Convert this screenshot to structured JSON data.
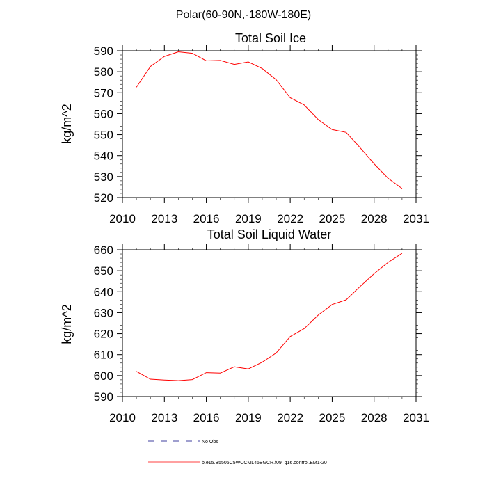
{
  "suptitle": "Polar(60-90N,-180W-180E)",
  "legend": [
    {
      "label": "No Obs",
      "color": "#000080",
      "dashed": true
    },
    {
      "label": "b.e15.B5505C5WCCML45BGCR.f09_g16.control.EM1-20",
      "color": "#ff0000",
      "dashed": false
    }
  ],
  "chart_data": [
    {
      "type": "line",
      "title": "Total Soil Ice",
      "ylabel": "kg/m^2",
      "xlim": [
        2010,
        2031
      ],
      "ylim": [
        520,
        590
      ],
      "xticks": [
        "2010",
        "2013",
        "2016",
        "2019",
        "2022",
        "2025",
        "2028",
        "2031"
      ],
      "yticks": [
        "520",
        "530",
        "540",
        "550",
        "560",
        "570",
        "580",
        "590"
      ],
      "line_color": "#ff0000",
      "x": [
        2011,
        2012,
        2013,
        2014,
        2015,
        2016,
        2017,
        2018,
        2019,
        2020,
        2021,
        2022,
        2023,
        2024,
        2025,
        2026,
        2027,
        2028,
        2029,
        2030
      ],
      "y": [
        572.6,
        582.5,
        587.3,
        589.5,
        588.8,
        585.2,
        585.4,
        583.5,
        584.7,
        581.5,
        576.2,
        567.6,
        564.2,
        557.2,
        552.4,
        551.1,
        543.8,
        536.1,
        529.2,
        524.3
      ]
    },
    {
      "type": "line",
      "title": "Total Soil Liquid Water",
      "ylabel": "kg/m^2",
      "xlim": [
        2010,
        2031
      ],
      "ylim": [
        590,
        660
      ],
      "xticks": [
        "2010",
        "2013",
        "2016",
        "2019",
        "2022",
        "2025",
        "2028",
        "2031"
      ],
      "yticks": [
        "590",
        "600",
        "610",
        "620",
        "630",
        "640",
        "650",
        "660"
      ],
      "line_color": "#ff0000",
      "x": [
        2011,
        2012,
        2013,
        2014,
        2015,
        2016,
        2017,
        2018,
        2019,
        2020,
        2021,
        2022,
        2023,
        2024,
        2025,
        2026,
        2027,
        2028,
        2029,
        2030
      ],
      "y": [
        602.0,
        598.3,
        597.9,
        597.6,
        598.1,
        601.4,
        601.2,
        604.2,
        603.2,
        606.4,
        610.8,
        618.6,
        622.4,
        628.8,
        633.9,
        636.1,
        642.5,
        648.6,
        654.0,
        658.3
      ]
    }
  ]
}
